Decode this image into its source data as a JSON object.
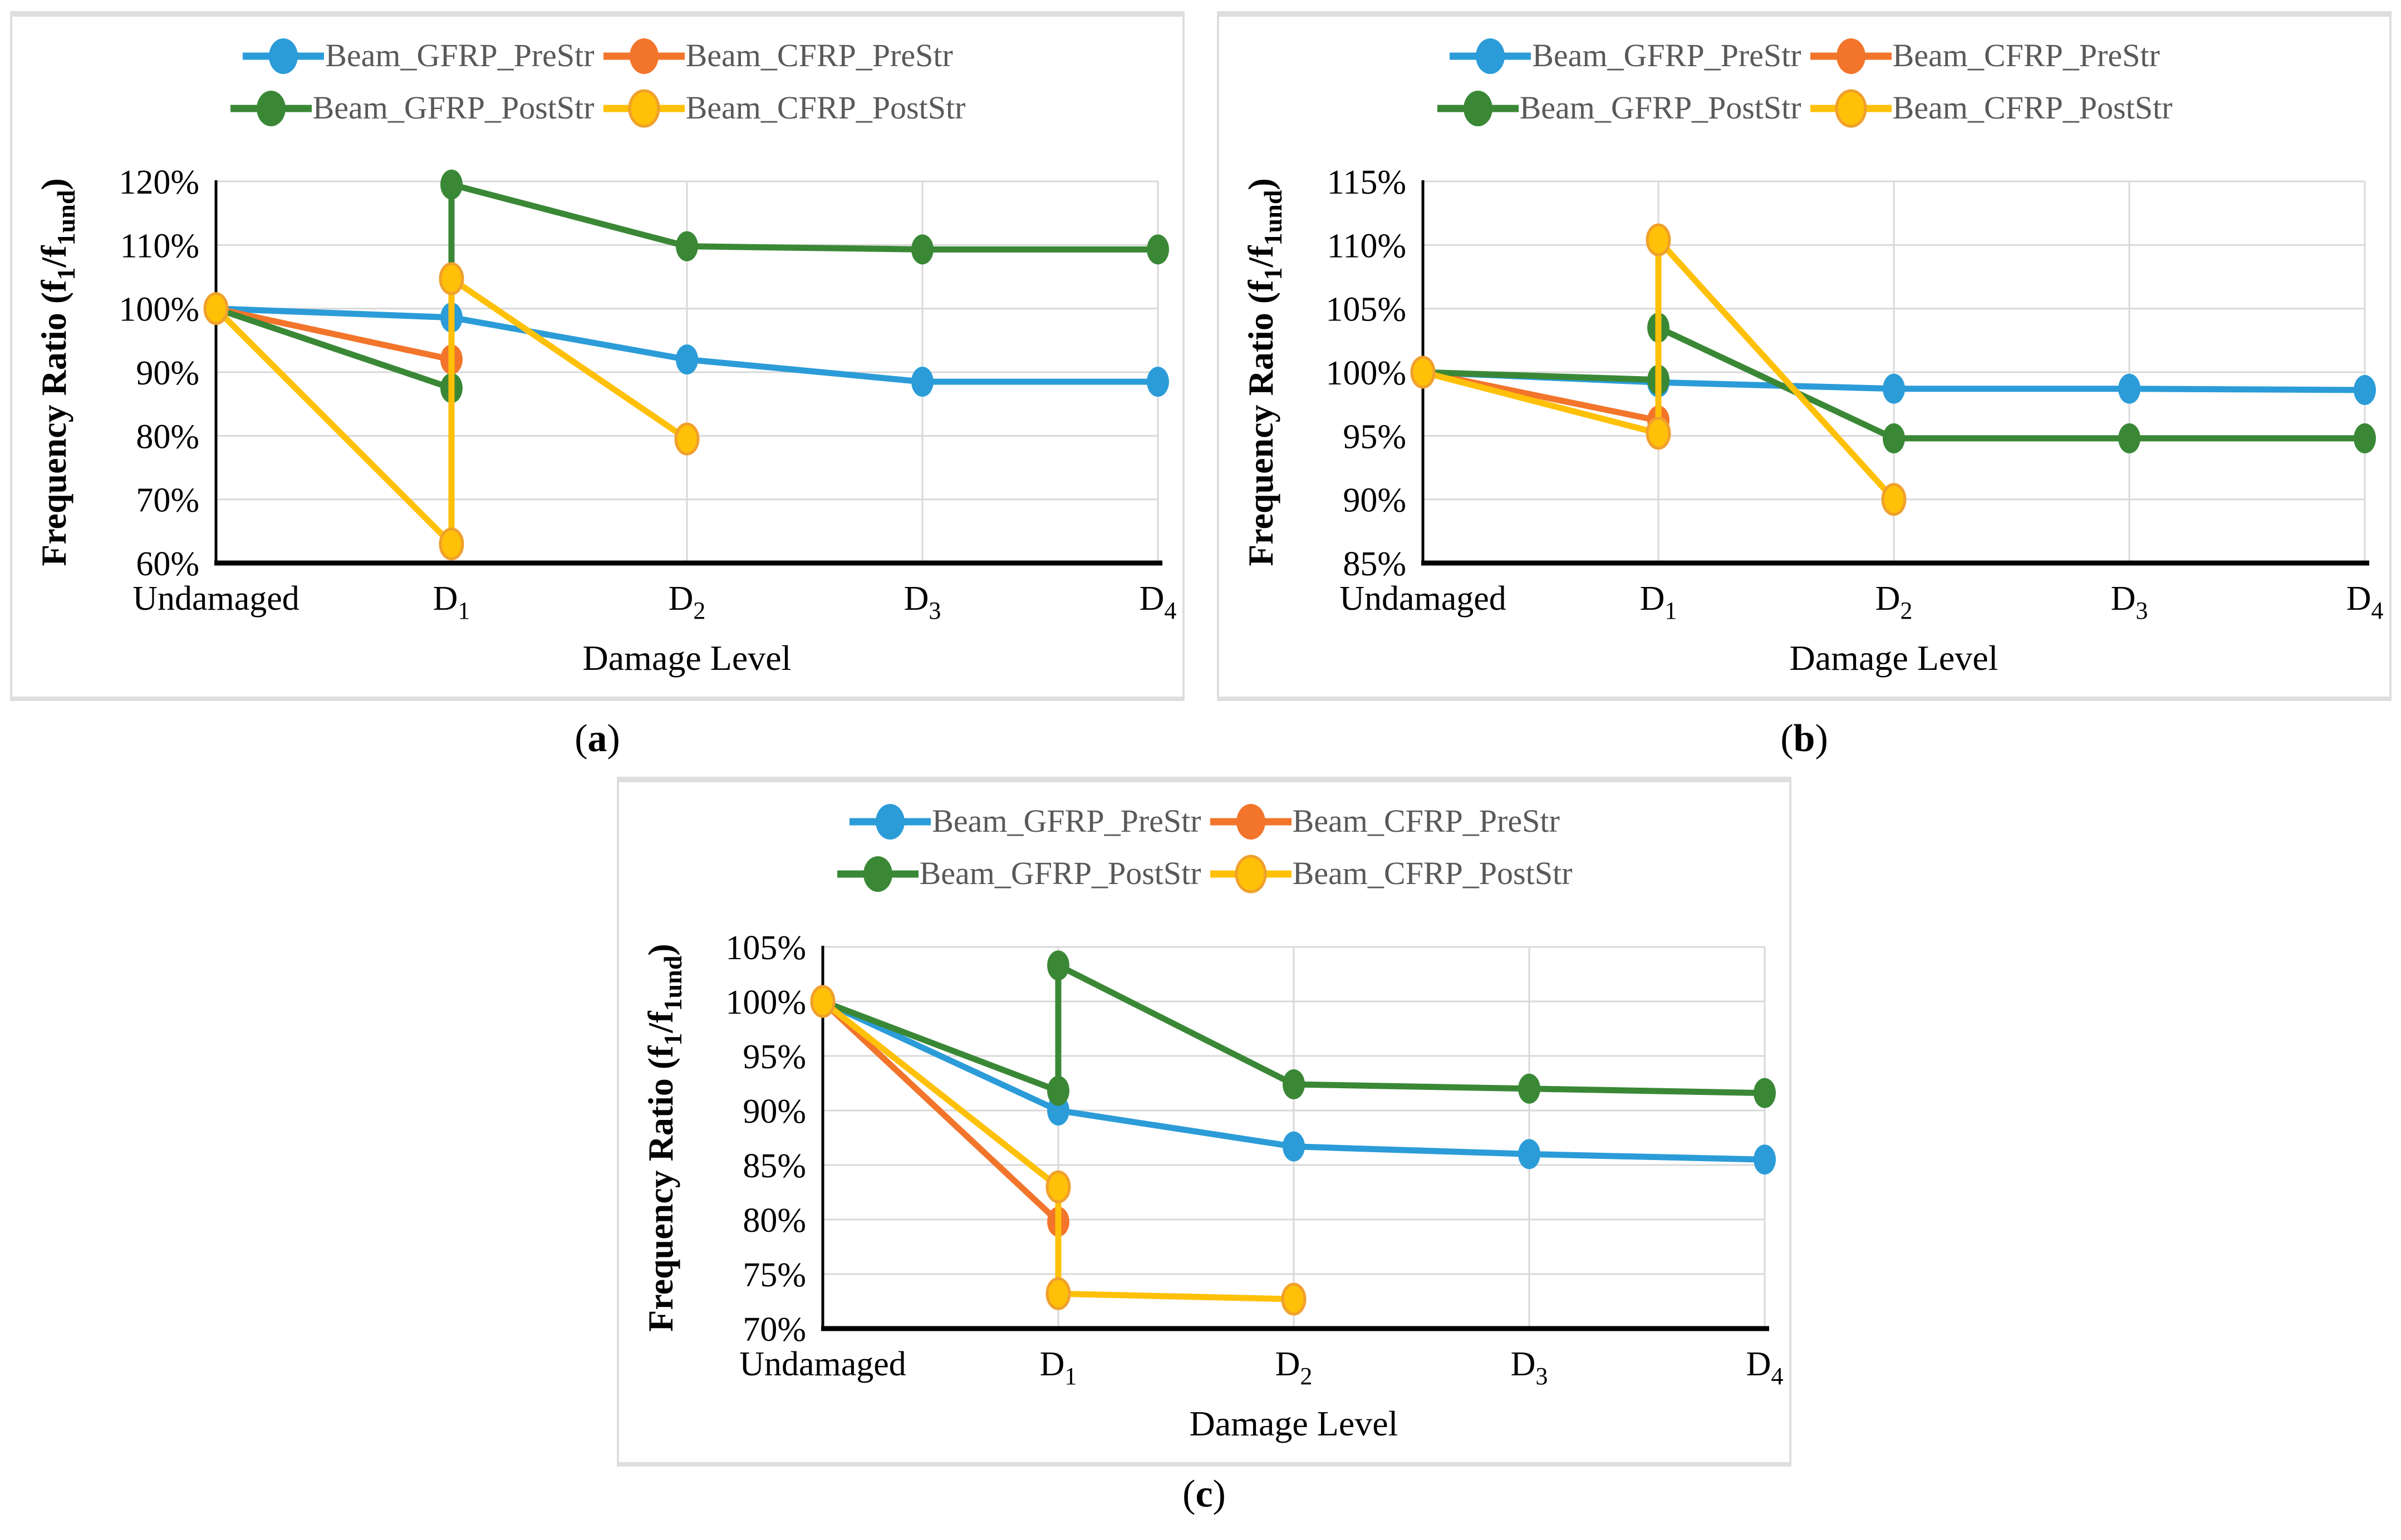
{
  "colors": {
    "blue": "#2B9CD8",
    "orange": "#F2752B",
    "green": "#3A8836",
    "yellow": "#FFC008",
    "yellow_marker_stroke": "#F0A02C",
    "legend_text": "#595959",
    "grid": "#D9D9D9",
    "axis": "#000000"
  },
  "text": {
    "ylabel_rich": [
      {
        "t": "Frequency Ratio (f",
        "sub": false
      },
      {
        "t": "1",
        "sub": true
      },
      {
        "t": "/f",
        "sub": false
      },
      {
        "t": "1und",
        "sub": true
      },
      {
        "t": ")",
        "sub": false
      }
    ],
    "categories_rich": [
      {
        "base": "Undamaged",
        "sub": ""
      },
      {
        "base": "D",
        "sub": "1"
      },
      {
        "base": "D",
        "sub": "2"
      },
      {
        "base": "D",
        "sub": "3"
      },
      {
        "base": "D",
        "sub": "4"
      }
    ]
  },
  "chart_data": [
    {
      "id": "a",
      "type": "line",
      "caption": {
        "open": "(",
        "label": "a",
        "close": ")"
      },
      "xlabel": "Damage Level",
      "ylabel": "Frequency Ratio (f1/f1und)",
      "categories": [
        "Undamaged",
        "D1",
        "D2",
        "D3",
        "D4"
      ],
      "ylim": [
        60,
        120
      ],
      "ystep": 10,
      "ytick_format": "percent",
      "grid": true,
      "legend_position": "top",
      "series": [
        {
          "name": "Beam_GFRP_PreStr",
          "color_key": "blue",
          "points": [
            [
              0,
              100
            ],
            [
              1,
              98.6
            ],
            [
              2,
              92
            ],
            [
              3,
              88.5
            ],
            [
              4,
              88.5
            ]
          ]
        },
        {
          "name": "Beam_CFRP_PreStr",
          "color_key": "orange",
          "points": [
            [
              0,
              100
            ],
            [
              1,
              92
            ]
          ]
        },
        {
          "name": "Beam_GFRP_PostStr",
          "color_key": "green",
          "points": [
            [
              0,
              100
            ],
            [
              1,
              87.5
            ],
            [
              1,
              119.5
            ],
            [
              2,
              109.8
            ],
            [
              3,
              109.3
            ],
            [
              4,
              109.3
            ]
          ]
        },
        {
          "name": "Beam_CFRP_PostStr",
          "color_key": "yellow",
          "marker_stroke": true,
          "points": [
            [
              0,
              100
            ],
            [
              1,
              63
            ],
            [
              1,
              104.7
            ],
            [
              2,
              79.5
            ]
          ]
        }
      ]
    },
    {
      "id": "b",
      "type": "line",
      "caption": {
        "open": "(",
        "label": "b",
        "close": ")"
      },
      "xlabel": "Damage Level",
      "ylabel": "Frequency Ratio (f1/f1und)",
      "categories": [
        "Undamaged",
        "D1",
        "D2",
        "D3",
        "D4"
      ],
      "ylim": [
        85,
        115
      ],
      "ystep": 5,
      "ytick_format": "percent",
      "grid": true,
      "legend_position": "top",
      "series": [
        {
          "name": "Beam_GFRP_PreStr",
          "color_key": "blue",
          "points": [
            [
              0,
              100
            ],
            [
              1,
              99.2
            ],
            [
              2,
              98.7
            ],
            [
              3,
              98.7
            ],
            [
              4,
              98.6
            ]
          ]
        },
        {
          "name": "Beam_CFRP_PreStr",
          "color_key": "orange",
          "points": [
            [
              0,
              100
            ],
            [
              1,
              96.2
            ]
          ]
        },
        {
          "name": "Beam_GFRP_PostStr",
          "color_key": "green",
          "points": [
            [
              0,
              100
            ],
            [
              1,
              99.4
            ],
            [
              1,
              103.5
            ],
            [
              2,
              94.8
            ],
            [
              3,
              94.8
            ],
            [
              4,
              94.8
            ]
          ]
        },
        {
          "name": "Beam_CFRP_PostStr",
          "color_key": "yellow",
          "marker_stroke": true,
          "points": [
            [
              0,
              100
            ],
            [
              1,
              95.2
            ],
            [
              1,
              110.4
            ],
            [
              2,
              90
            ]
          ]
        }
      ]
    },
    {
      "id": "c",
      "type": "line",
      "caption": {
        "open": "(",
        "label": "c",
        "close": ")"
      },
      "xlabel": "Damage Level",
      "ylabel": "Frequency Ratio (f1/f1und)",
      "categories": [
        "Undamaged",
        "D1",
        "D2",
        "D3",
        "D4"
      ],
      "ylim": [
        70,
        105
      ],
      "ystep": 5,
      "ytick_format": "percent",
      "grid": true,
      "legend_position": "top",
      "series": [
        {
          "name": "Beam_GFRP_PreStr",
          "color_key": "blue",
          "points": [
            [
              0,
              100
            ],
            [
              1,
              90
            ],
            [
              2,
              86.7
            ],
            [
              3,
              86
            ],
            [
              4,
              85.5
            ]
          ]
        },
        {
          "name": "Beam_CFRP_PreStr",
          "color_key": "orange",
          "points": [
            [
              0,
              100
            ],
            [
              1,
              79.8
            ]
          ]
        },
        {
          "name": "Beam_GFRP_PostStr",
          "color_key": "green",
          "points": [
            [
              0,
              100
            ],
            [
              1,
              91.8
            ],
            [
              1,
              103.3
            ],
            [
              2,
              92.4
            ],
            [
              3,
              92
            ],
            [
              4,
              91.6
            ]
          ]
        },
        {
          "name": "Beam_CFRP_PostStr",
          "color_key": "yellow",
          "marker_stroke": true,
          "points": [
            [
              0,
              100
            ],
            [
              1,
              83
            ],
            [
              1,
              73.2
            ],
            [
              2,
              72.7
            ]
          ]
        }
      ]
    }
  ]
}
